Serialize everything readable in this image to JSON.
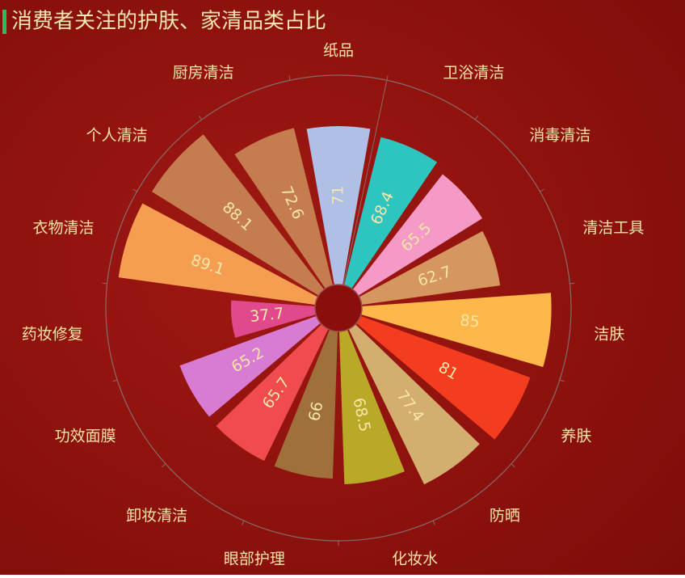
{
  "chart_data": {
    "type": "polar-bar",
    "title": "消费者关注的护肤、家清品类占比",
    "categories": [
      "纸品",
      "卫浴清洁",
      "消毒清洁",
      "清洁工具",
      "洁肤",
      "养肤",
      "防晒",
      "化妆水",
      "眼部护理",
      "卸妆清洁",
      "功效面膜",
      "药妆修复",
      "衣物清洁",
      "个人清洁",
      "厨房清洁"
    ],
    "values": [
      71,
      68.4,
      65.5,
      62.7,
      85,
      81,
      77.4,
      68.5,
      66,
      65.7,
      65.2,
      37.7,
      89.1,
      88.1,
      72.6
    ],
    "colors": [
      "#b0bfe6",
      "#2ec4c0",
      "#f59ac6",
      "#d69660",
      "#fdb74a",
      "#f43d1e",
      "#d3ae6e",
      "#b9a926",
      "#a0703a",
      "#f04b4e",
      "#d87bd3",
      "#e04a8c",
      "#f59e52",
      "#c57d50",
      "#c57d50"
    ],
    "rlim": [
      0,
      100
    ]
  }
}
